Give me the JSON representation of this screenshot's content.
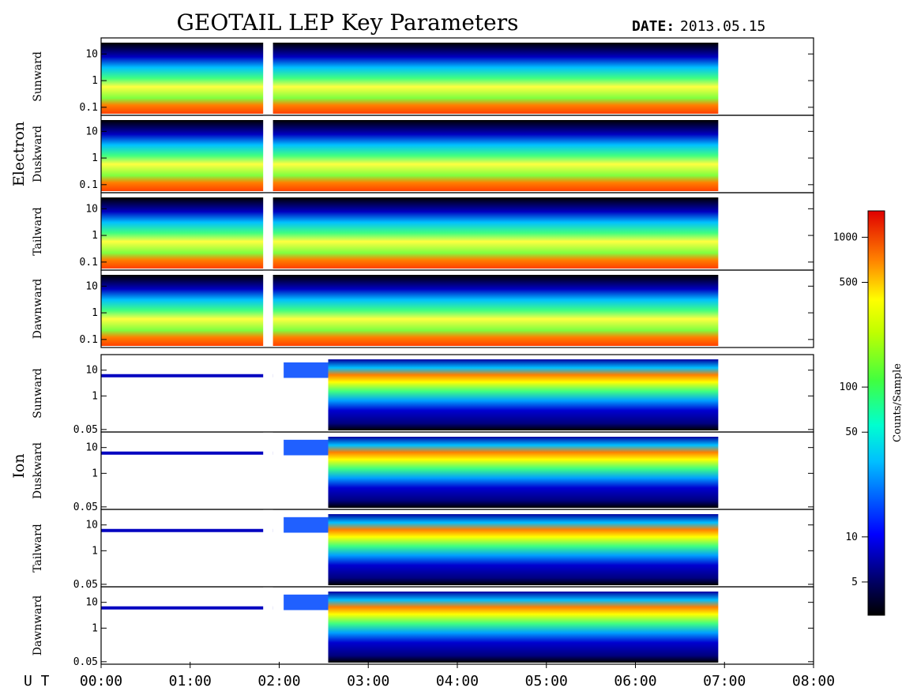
{
  "chart_data": {
    "type": "heatmap",
    "title": "GEOTAIL LEP Key Parameters",
    "date_label": "DATE:",
    "date_value": "2013.05.15",
    "x_axis_label": "U T",
    "x_ticks": [
      "00:00",
      "01:00",
      "02:00",
      "03:00",
      "04:00",
      "05:00",
      "06:00",
      "07:00",
      "08:00"
    ],
    "xlim_hours": [
      0,
      8
    ],
    "data_end_hour": 6.93,
    "data_gaps_hours": [
      [
        1.82,
        1.93
      ]
    ],
    "groups": [
      {
        "name": "Electron",
        "y_ticks": [
          "10",
          "1",
          "0.1"
        ],
        "y_tick_values": [
          10,
          1,
          0.1
        ],
        "ylim": [
          0.05,
          40
        ],
        "panels": [
          {
            "name": "Sunward"
          },
          {
            "name": "Duskward"
          },
          {
            "name": "Tailward"
          },
          {
            "name": "Dawnward"
          }
        ]
      },
      {
        "name": "Ion",
        "y_ticks": [
          "10",
          "1",
          "0.05"
        ],
        "y_tick_values": [
          10,
          1,
          0.05
        ],
        "ylim": [
          0.04,
          40
        ],
        "panels": [
          {
            "name": "Sunward"
          },
          {
            "name": "Duskward"
          },
          {
            "name": "Tailward"
          },
          {
            "name": "Dawnward"
          }
        ]
      }
    ],
    "colorbar": {
      "label": "Counts/Sample",
      "scale": "log",
      "range": [
        3,
        1500
      ],
      "ticks": [
        "1000",
        "500",
        "100",
        "50",
        "10",
        "5"
      ],
      "tick_values": [
        1000,
        500,
        100,
        50,
        10,
        5
      ],
      "colors": [
        "#000000",
        "#00008b",
        "#0000ff",
        "#00bfff",
        "#00ffff",
        "#00ff80",
        "#80ff00",
        "#ffff00",
        "#ff8000",
        "#ff4000",
        "#e00000"
      ]
    }
  }
}
